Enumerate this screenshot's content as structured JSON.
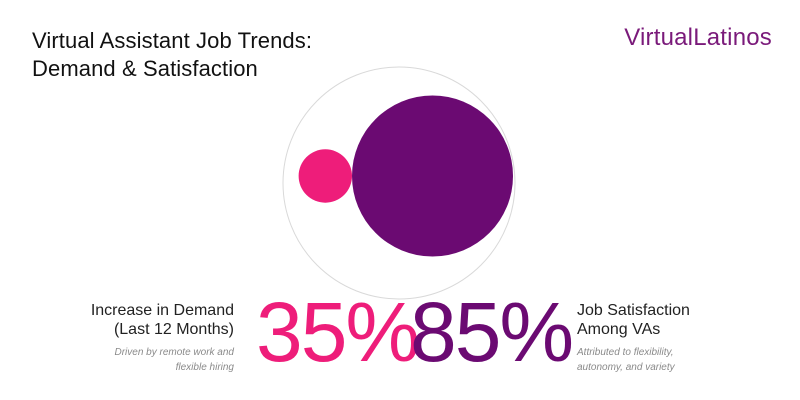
{
  "header": {
    "title_line1": "Virtual Assistant Job Trends:",
    "title_line2": "Demand & Satisfaction",
    "logo_part1": "Virtual",
    "logo_part2": "Latinos"
  },
  "colors": {
    "pink": "#ee1d7a",
    "purple": "#6b0a72",
    "logo": "#7a1a7a",
    "outline": "#d9d9d9"
  },
  "chart_data": {
    "type": "bubble",
    "max_value": 100,
    "series": [
      {
        "value": 35,
        "display": "35%",
        "label_line1": "Increase in Demand",
        "label_line2": "(Last 12 Months)",
        "note_line1": "Driven by remote work and",
        "note_line2": "flexible hiring",
        "color": "#ee1d7a"
      },
      {
        "value": 85,
        "display": "85%",
        "label_line1": "Job Satisfaction",
        "label_line2": "Among VAs",
        "note_line1": "Attributed to flexibility,",
        "note_line2": "autonomy, and variety",
        "color": "#6b0a72"
      }
    ]
  }
}
